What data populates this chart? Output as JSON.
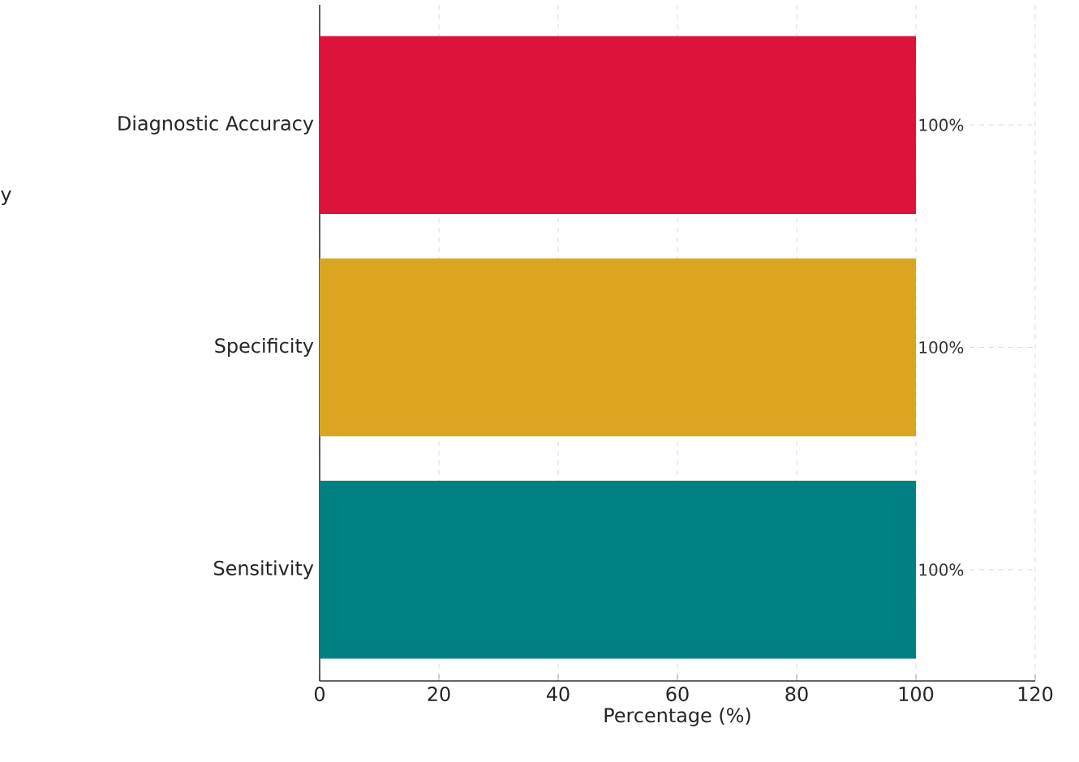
{
  "chart_data": {
    "type": "bar",
    "orientation": "horizontal",
    "xlabel": "Percentage (%)",
    "annotations": [
      "y"
    ],
    "categories": [
      "Diagnostic Accuracy",
      "Specificity",
      "Sensitivity"
    ],
    "values": [
      100,
      100,
      100
    ],
    "colors": [
      "#dc143c",
      "#daa520",
      "#008080"
    ],
    "value_labels": [
      "100%",
      "100%",
      "100%"
    ],
    "xlim": [
      0,
      120
    ],
    "xticks": [
      0,
      20,
      40,
      60,
      80,
      100,
      120
    ],
    "grid": true
  }
}
